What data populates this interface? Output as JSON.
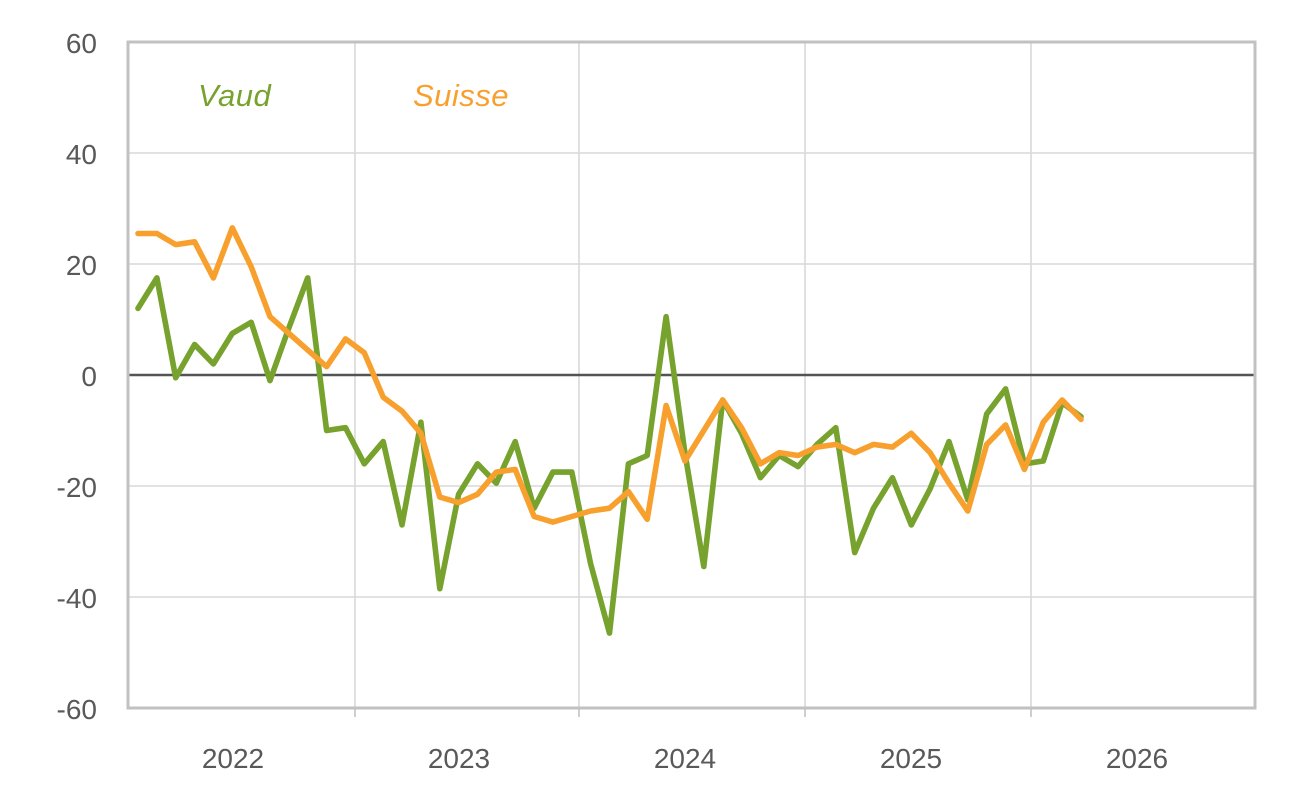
{
  "chart_data": {
    "type": "line",
    "title": "",
    "frequency": "monthly",
    "n_points": 51,
    "ylim": [
      -60,
      60
    ],
    "ytick_interval": 20,
    "yticks": [
      "60",
      "40",
      "20",
      "0",
      "-20",
      "-40",
      "-60"
    ],
    "ytick_values": [
      60,
      40,
      20,
      0,
      -20,
      -40,
      -60
    ],
    "x_year_labels": [
      "2022",
      "2023",
      "2024",
      "2025",
      "2026"
    ],
    "grid": true,
    "zero_line": true,
    "legend_position": "inside-top-left",
    "colors": {
      "axis_text": "#595959",
      "gridline": "#D9D9D9",
      "zero_line": "#545454",
      "plot_border": "#C1C1C1",
      "background": "#FFFFFF"
    },
    "series": [
      {
        "name": "Vaud",
        "color": "#76A22D",
        "values": [
          12,
          17.5,
          -0.5,
          5.5,
          2,
          7.5,
          9.5,
          -1,
          8.5,
          17.5,
          -10,
          -9.5,
          -16,
          -12,
          -27,
          -8.5,
          -38.5,
          -21.5,
          -16,
          -19.5,
          -12,
          -24,
          -17.5,
          -17.5,
          -34,
          -46.5,
          -16,
          -14.5,
          10.5,
          -14,
          -34.5,
          -4.5,
          -10.5,
          -18.5,
          -14.5,
          -16.5,
          -12.5,
          -9.5,
          -32,
          -24,
          -18.5,
          -27,
          -20.5,
          -12,
          -22.5,
          -7,
          -2.5,
          -16,
          -15.5,
          -5,
          -7.5
        ]
      },
      {
        "name": "Suisse",
        "color": "#F8A02E",
        "values": [
          25.5,
          25.5,
          23.5,
          24,
          17.5,
          26.5,
          19.5,
          10.5,
          7.5,
          4.5,
          1.5,
          6.5,
          4,
          -4,
          -6.5,
          -10.5,
          -22,
          -23,
          -21.5,
          -17.5,
          -17,
          -25.5,
          -26.5,
          -25.5,
          -24.5,
          -24,
          -21,
          -26,
          -5.5,
          -15.5,
          -10,
          -4.5,
          -9.5,
          -16,
          -14,
          -14.5,
          -13,
          -12.5,
          -14,
          -12.5,
          -13,
          -10.5,
          -14,
          -19.5,
          -24.5,
          -12.5,
          -9,
          -17,
          -8.5,
          -4.5,
          -8
        ]
      }
    ]
  }
}
